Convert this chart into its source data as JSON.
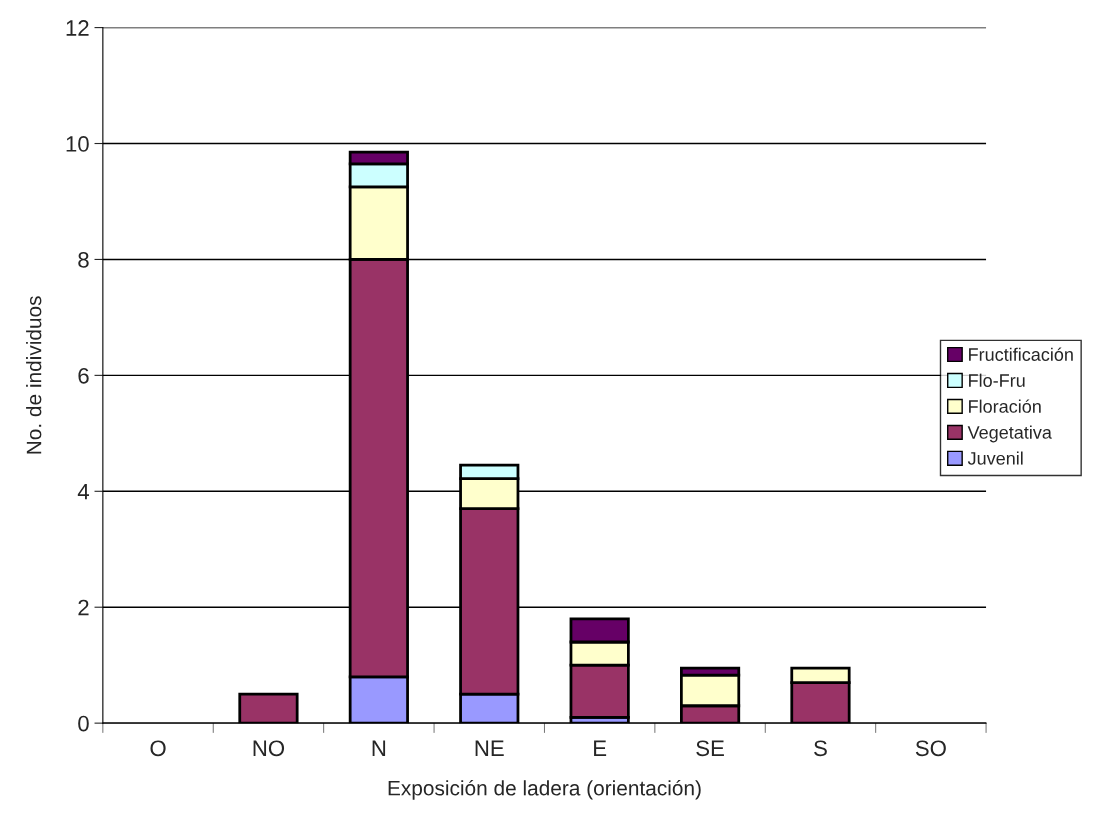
{
  "chart_data": {
    "type": "bar",
    "stacked": true,
    "xlabel": "Exposición de ladera (orientación)",
    "ylabel": "No. de individuos",
    "categories": [
      "O",
      "NO",
      "N",
      "NE",
      "E",
      "SE",
      "S",
      "SO"
    ],
    "series": [
      {
        "name": "Juvenil",
        "color": "#9999ff",
        "values": [
          null,
          null,
          0.8,
          0.5,
          0.1,
          null,
          null,
          null
        ]
      },
      {
        "name": "Vegetativa",
        "color": "#993366",
        "values": [
          null,
          0.5,
          7.2,
          3.2,
          0.9,
          0.3,
          0.7,
          null
        ]
      },
      {
        "name": "Floración",
        "color": "#ffffcc",
        "values": [
          null,
          null,
          1.25,
          0.52,
          0.4,
          0.53,
          0.25,
          null
        ]
      },
      {
        "name": "Flo-Fru",
        "color": "#ccffff",
        "values": [
          null,
          null,
          0.4,
          0.23,
          null,
          null,
          null,
          null
        ]
      },
      {
        "name": "Fructificación",
        "color": "#660066",
        "values": [
          null,
          null,
          0.2,
          null,
          0.4,
          0.12,
          null,
          null
        ]
      }
    ],
    "ylim": [
      0,
      12
    ],
    "yticks": [
      0,
      2,
      4,
      6,
      8,
      10,
      12
    ],
    "grid": "y",
    "legend": "right"
  }
}
